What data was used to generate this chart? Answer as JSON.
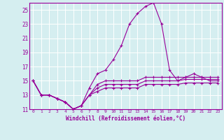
{
  "xlabel": "Windchill (Refroidissement éolien,°C)",
  "background_color": "#d5eef0",
  "line_color": "#990099",
  "grid_color": "#ffffff",
  "hours": [
    0,
    1,
    2,
    3,
    4,
    5,
    6,
    7,
    8,
    9,
    10,
    11,
    12,
    13,
    14,
    15,
    16,
    17,
    18,
    19,
    20,
    21,
    22,
    23
  ],
  "temperature": [
    15,
    13,
    13,
    12.5,
    12,
    11,
    11.5,
    14,
    16,
    16.5,
    18,
    20,
    23,
    24.5,
    25.5,
    26,
    23,
    16.5,
    15,
    15.5,
    16,
    15.5,
    15,
    15
  ],
  "windchill": [
    15,
    13,
    13,
    12.5,
    12,
    11,
    11.5,
    13,
    14.5,
    15,
    15,
    15,
    15,
    15,
    15.5,
    15.5,
    15.5,
    15.5,
    15.5,
    15.5,
    15.5,
    15.5,
    15.5,
    15.5
  ],
  "windchill2": [
    15,
    13,
    13,
    12.5,
    12,
    11,
    11.5,
    13,
    14,
    14.5,
    14.5,
    14.5,
    14.5,
    14.5,
    15,
    15,
    15,
    15,
    15,
    15.2,
    15.2,
    15.2,
    15.2,
    15.2
  ],
  "windchill3": [
    15,
    13,
    13,
    12.5,
    12,
    11,
    11.5,
    13,
    13.5,
    14,
    14,
    14,
    14,
    14,
    14.5,
    14.5,
    14.5,
    14.5,
    14.5,
    14.7,
    14.7,
    14.7,
    14.7,
    14.7
  ],
  "ylim": [
    11,
    26
  ],
  "xlim": [
    -0.5,
    23.5
  ],
  "yticks": [
    11,
    13,
    15,
    17,
    19,
    21,
    23,
    25
  ],
  "xticks": [
    0,
    1,
    2,
    3,
    4,
    5,
    6,
    7,
    8,
    9,
    10,
    11,
    12,
    13,
    14,
    15,
    16,
    17,
    18,
    19,
    20,
    21,
    22,
    23
  ],
  "figsize": [
    3.2,
    2.0
  ],
  "dpi": 100
}
